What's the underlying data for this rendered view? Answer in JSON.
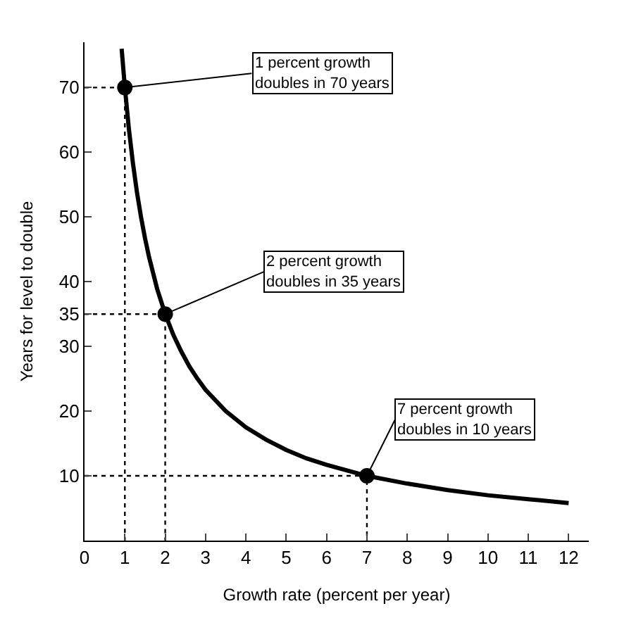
{
  "chart_data": {
    "type": "line",
    "xlabel": "Growth rate (percent per year)",
    "ylabel": "Years for level to double",
    "xlim": [
      0,
      12.5
    ],
    "ylim": [
      0,
      77
    ],
    "xticks": [
      0,
      1,
      2,
      3,
      4,
      5,
      6,
      7,
      8,
      9,
      10,
      11,
      12
    ],
    "yticks": [
      10,
      20,
      30,
      35,
      40,
      50,
      60,
      70
    ],
    "series": [
      {
        "color": "#000000",
        "line_style": "solid",
        "marker": "none",
        "x": [
          0.92,
          1,
          1.1,
          1.2,
          1.3,
          1.4,
          1.5,
          1.6,
          1.8,
          2,
          2.2,
          2.4,
          2.6,
          2.8,
          3,
          3.5,
          4,
          4.5,
          5,
          5.5,
          6,
          7,
          8,
          9,
          10,
          11,
          12
        ],
        "values": [
          76,
          70,
          63.6,
          58.3,
          53.8,
          50,
          46.7,
          43.8,
          38.9,
          35,
          31.8,
          29.2,
          26.9,
          25,
          23.3,
          20,
          17.5,
          15.6,
          14,
          12.7,
          11.7,
          10,
          8.8,
          7.8,
          7,
          6.4,
          5.8
        ]
      },
      {
        "color": "#000000",
        "line_style": "dotted",
        "marker": "none",
        "x": [
          0,
          1,
          1
        ],
        "values": [
          70,
          70,
          0
        ]
      },
      {
        "color": "#000000",
        "line_style": "dotted",
        "marker": "none",
        "x": [
          0,
          2,
          2
        ],
        "values": [
          35,
          35,
          0
        ]
      },
      {
        "color": "#000000",
        "line_style": "dotted",
        "marker": "none",
        "x": [
          0,
          7,
          7
        ],
        "values": [
          10,
          10,
          0
        ]
      },
      {
        "type": "scatter",
        "color": "#000000",
        "marker": "circle",
        "x": [
          1,
          2,
          7
        ],
        "values": [
          70,
          35,
          10
        ]
      }
    ],
    "annotations": [
      {
        "text": "1 percent growth\ndoubles in 70 years",
        "x": 1,
        "y": 70
      },
      {
        "text": "2 percent growth\ndoubles in 35 years",
        "x": 2,
        "y": 35
      },
      {
        "text": "7 percent growth\ndoubles in 10 years",
        "x": 7,
        "y": 10
      }
    ]
  }
}
